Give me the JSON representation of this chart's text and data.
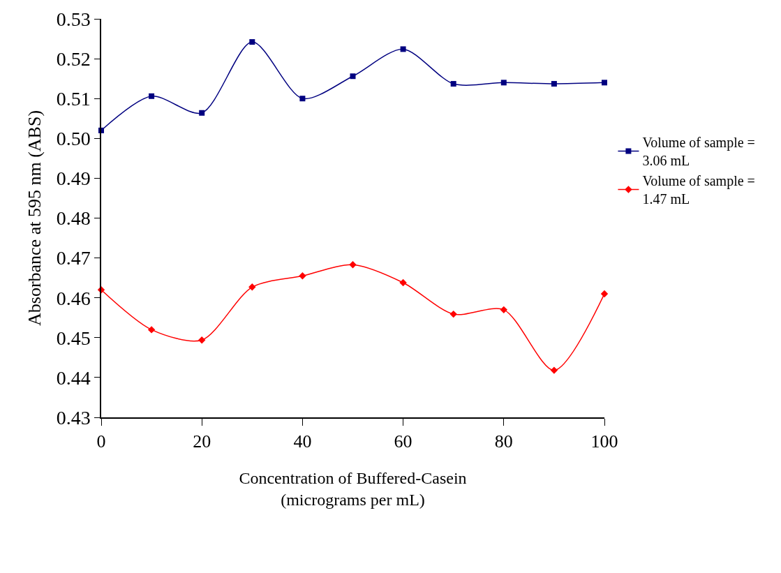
{
  "chart_data": {
    "type": "line",
    "xlabel": "Concentration of Buffered-Casein\n(micrograms per mL)",
    "ylabel": "Absorbance at 595 nm (ABS)",
    "x": [
      0,
      10,
      20,
      30,
      40,
      50,
      60,
      70,
      80,
      90,
      100
    ],
    "series": [
      {
        "name": "Volume of sample = 3.06 mL",
        "color": "#000080",
        "marker": "square",
        "values": [
          0.502,
          0.5106,
          0.5064,
          0.5242,
          0.51,
          0.5156,
          0.5224,
          0.5137,
          0.514,
          0.5137,
          0.514
        ]
      },
      {
        "name": "Volume of sample = 1.47 mL",
        "color": "#ff0000",
        "marker": "diamond",
        "values": [
          0.462,
          0.452,
          0.4494,
          0.4627,
          0.4655,
          0.4683,
          0.4638,
          0.4559,
          0.457,
          0.4418,
          0.461
        ]
      }
    ],
    "xlim": [
      0,
      100
    ],
    "xticks": [
      0,
      20,
      40,
      60,
      80,
      100
    ],
    "ylim": [
      0.43,
      0.53
    ],
    "yticks": [
      {
        "value": 0.43,
        "label": "0.43"
      },
      {
        "value": 0.44,
        "label": "0.44"
      },
      {
        "value": 0.45,
        "label": "0.45"
      },
      {
        "value": 0.46,
        "label": "0.46"
      },
      {
        "value": 0.47,
        "label": "0.47"
      },
      {
        "value": 0.48,
        "label": "0.48"
      },
      {
        "value": 0.49,
        "label": "0.49"
      },
      {
        "value": 0.5,
        "label": "0.50"
      },
      {
        "value": 0.51,
        "label": "0.51"
      },
      {
        "value": 0.52,
        "label": "0.52"
      },
      {
        "value": 0.53,
        "label": "0.53"
      }
    ],
    "legend": "right",
    "line_style": "solid"
  }
}
